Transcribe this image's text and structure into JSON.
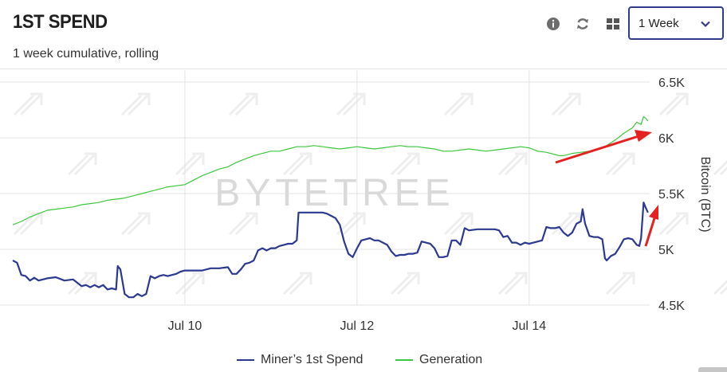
{
  "header": {
    "title": "1ST SPEND",
    "subtitle": "1 week cumulative, rolling"
  },
  "toolbar": {
    "info_icon": "info-icon",
    "refresh_icon": "refresh-icon",
    "grid_icon": "grid-icon",
    "period_value": "1 Week",
    "period_chevron": "chevron-down-icon"
  },
  "watermark": "BYTETREE",
  "colors": {
    "primary_series": "#2b3990",
    "generation_series": "#3ec63e",
    "annotation_arrow": "#e52222",
    "select_border": "#323a8c"
  },
  "chart_data": {
    "type": "line",
    "ylabel": "Bitcoin (BTC)",
    "ylim": [
      4500,
      6500
    ],
    "yticks": [
      "4.5K",
      "5K",
      "5.5K",
      "6K",
      "6.5K"
    ],
    "xticks": [
      "Jul 10",
      "Jul 12",
      "Jul 14"
    ],
    "xlim_days": [
      8.0,
      15.4
    ],
    "grid": true,
    "legend_position": "bottom",
    "series": [
      {
        "name": "Miner’s 1st Spend",
        "color": "#2b3990",
        "points": [
          [
            8.0,
            4900
          ],
          [
            8.05,
            4880
          ],
          [
            8.1,
            4770
          ],
          [
            8.15,
            4760
          ],
          [
            8.2,
            4720
          ],
          [
            8.25,
            4745
          ],
          [
            8.3,
            4720
          ],
          [
            8.4,
            4740
          ],
          [
            8.5,
            4750
          ],
          [
            8.6,
            4720
          ],
          [
            8.7,
            4730
          ],
          [
            8.75,
            4700
          ],
          [
            8.8,
            4670
          ],
          [
            8.85,
            4680
          ],
          [
            8.9,
            4660
          ],
          [
            8.95,
            4680
          ],
          [
            9.0,
            4660
          ],
          [
            9.05,
            4680
          ],
          [
            9.1,
            4640
          ],
          [
            9.15,
            4650
          ],
          [
            9.2,
            4640
          ],
          [
            9.22,
            4850
          ],
          [
            9.25,
            4820
          ],
          [
            9.3,
            4600
          ],
          [
            9.35,
            4570
          ],
          [
            9.4,
            4570
          ],
          [
            9.45,
            4600
          ],
          [
            9.5,
            4580
          ],
          [
            9.55,
            4600
          ],
          [
            9.6,
            4760
          ],
          [
            9.65,
            4740
          ],
          [
            9.7,
            4760
          ],
          [
            9.75,
            4770
          ],
          [
            9.8,
            4760
          ],
          [
            9.85,
            4770
          ],
          [
            9.9,
            4780
          ],
          [
            9.95,
            4800
          ],
          [
            10.0,
            4810
          ],
          [
            10.1,
            4810
          ],
          [
            10.2,
            4810
          ],
          [
            10.3,
            4830
          ],
          [
            10.4,
            4830
          ],
          [
            10.5,
            4840
          ],
          [
            10.55,
            4780
          ],
          [
            10.6,
            4780
          ],
          [
            10.65,
            4820
          ],
          [
            10.7,
            4870
          ],
          [
            10.75,
            4880
          ],
          [
            10.8,
            4900
          ],
          [
            10.85,
            4990
          ],
          [
            10.9,
            5010
          ],
          [
            10.95,
            4990
          ],
          [
            11.0,
            5010
          ],
          [
            11.05,
            5010
          ],
          [
            11.1,
            5030
          ],
          [
            11.15,
            5040
          ],
          [
            11.2,
            5050
          ],
          [
            11.25,
            5050
          ],
          [
            11.3,
            5080
          ],
          [
            11.32,
            5330
          ],
          [
            11.4,
            5330
          ],
          [
            11.5,
            5330
          ],
          [
            11.6,
            5330
          ],
          [
            11.65,
            5320
          ],
          [
            11.7,
            5300
          ],
          [
            11.75,
            5280
          ],
          [
            11.8,
            5220
          ],
          [
            11.85,
            5070
          ],
          [
            11.9,
            4960
          ],
          [
            11.95,
            4930
          ],
          [
            12.0,
            5010
          ],
          [
            12.05,
            5080
          ],
          [
            12.1,
            5090
          ],
          [
            12.15,
            5100
          ],
          [
            12.2,
            5080
          ],
          [
            12.25,
            5080
          ],
          [
            12.3,
            5060
          ],
          [
            12.35,
            5040
          ],
          [
            12.4,
            4980
          ],
          [
            12.45,
            4940
          ],
          [
            12.5,
            4950
          ],
          [
            12.55,
            4950
          ],
          [
            12.6,
            4960
          ],
          [
            12.65,
            4960
          ],
          [
            12.7,
            4970
          ],
          [
            12.75,
            5070
          ],
          [
            12.8,
            5060
          ],
          [
            12.85,
            5050
          ],
          [
            12.9,
            5010
          ],
          [
            12.95,
            4930
          ],
          [
            13.0,
            4930
          ],
          [
            13.05,
            4940
          ],
          [
            13.1,
            5080
          ],
          [
            13.15,
            5080
          ],
          [
            13.2,
            5040
          ],
          [
            13.25,
            5190
          ],
          [
            13.3,
            5170
          ],
          [
            13.4,
            5180
          ],
          [
            13.5,
            5180
          ],
          [
            13.6,
            5180
          ],
          [
            13.65,
            5170
          ],
          [
            13.7,
            5110
          ],
          [
            13.75,
            5120
          ],
          [
            13.8,
            5060
          ],
          [
            13.85,
            5060
          ],
          [
            13.9,
            5040
          ],
          [
            13.95,
            5060
          ],
          [
            14.0,
            5050
          ],
          [
            14.05,
            5060
          ],
          [
            14.1,
            5070
          ],
          [
            14.15,
            5080
          ],
          [
            14.2,
            5200
          ],
          [
            14.25,
            5190
          ],
          [
            14.3,
            5190
          ],
          [
            14.35,
            5200
          ],
          [
            14.4,
            5150
          ],
          [
            14.45,
            5120
          ],
          [
            14.5,
            5150
          ],
          [
            14.55,
            5230
          ],
          [
            14.6,
            5250
          ],
          [
            14.62,
            5360
          ],
          [
            14.65,
            5230
          ],
          [
            14.7,
            5120
          ],
          [
            14.75,
            5110
          ],
          [
            14.8,
            5110
          ],
          [
            14.85,
            5090
          ],
          [
            14.88,
            4920
          ],
          [
            14.9,
            4900
          ],
          [
            14.95,
            4940
          ],
          [
            15.0,
            4960
          ],
          [
            15.05,
            5020
          ],
          [
            15.1,
            5090
          ],
          [
            15.15,
            5100
          ],
          [
            15.2,
            5090
          ],
          [
            15.25,
            5040
          ],
          [
            15.28,
            5030
          ],
          [
            15.3,
            5100
          ],
          [
            15.33,
            5420
          ],
          [
            15.35,
            5380
          ],
          [
            15.38,
            5330
          ]
        ]
      },
      {
        "name": "Generation",
        "color": "#3ec63e",
        "points": [
          [
            8.0,
            5220
          ],
          [
            8.1,
            5250
          ],
          [
            8.2,
            5290
          ],
          [
            8.3,
            5320
          ],
          [
            8.4,
            5350
          ],
          [
            8.5,
            5360
          ],
          [
            8.6,
            5370
          ],
          [
            8.7,
            5380
          ],
          [
            8.8,
            5400
          ],
          [
            8.9,
            5410
          ],
          [
            9.0,
            5420
          ],
          [
            9.1,
            5440
          ],
          [
            9.2,
            5450
          ],
          [
            9.3,
            5460
          ],
          [
            9.4,
            5480
          ],
          [
            9.5,
            5500
          ],
          [
            9.6,
            5520
          ],
          [
            9.7,
            5540
          ],
          [
            9.8,
            5560
          ],
          [
            9.9,
            5570
          ],
          [
            10.0,
            5580
          ],
          [
            10.1,
            5620
          ],
          [
            10.2,
            5660
          ],
          [
            10.3,
            5690
          ],
          [
            10.4,
            5720
          ],
          [
            10.5,
            5740
          ],
          [
            10.6,
            5780
          ],
          [
            10.7,
            5810
          ],
          [
            10.8,
            5840
          ],
          [
            10.9,
            5860
          ],
          [
            11.0,
            5880
          ],
          [
            11.1,
            5880
          ],
          [
            11.2,
            5900
          ],
          [
            11.3,
            5920
          ],
          [
            11.4,
            5920
          ],
          [
            11.5,
            5930
          ],
          [
            11.6,
            5920
          ],
          [
            11.7,
            5910
          ],
          [
            11.8,
            5900
          ],
          [
            11.9,
            5910
          ],
          [
            12.0,
            5920
          ],
          [
            12.1,
            5910
          ],
          [
            12.2,
            5900
          ],
          [
            12.3,
            5910
          ],
          [
            12.4,
            5920
          ],
          [
            12.5,
            5930
          ],
          [
            12.6,
            5920
          ],
          [
            12.7,
            5920
          ],
          [
            12.8,
            5910
          ],
          [
            12.9,
            5900
          ],
          [
            13.0,
            5880
          ],
          [
            13.1,
            5880
          ],
          [
            13.2,
            5890
          ],
          [
            13.3,
            5900
          ],
          [
            13.4,
            5890
          ],
          [
            13.5,
            5880
          ],
          [
            13.6,
            5890
          ],
          [
            13.7,
            5900
          ],
          [
            13.8,
            5910
          ],
          [
            13.9,
            5920
          ],
          [
            14.0,
            5910
          ],
          [
            14.1,
            5880
          ],
          [
            14.2,
            5870
          ],
          [
            14.3,
            5850
          ],
          [
            14.35,
            5840
          ],
          [
            14.4,
            5840
          ],
          [
            14.5,
            5860
          ],
          [
            14.6,
            5870
          ],
          [
            14.7,
            5880
          ],
          [
            14.8,
            5900
          ],
          [
            14.9,
            5930
          ],
          [
            15.0,
            5980
          ],
          [
            15.1,
            6040
          ],
          [
            15.2,
            6090
          ],
          [
            15.25,
            6140
          ],
          [
            15.3,
            6120
          ],
          [
            15.33,
            6190
          ],
          [
            15.36,
            6170
          ],
          [
            15.38,
            6150
          ]
        ]
      }
    ]
  }
}
